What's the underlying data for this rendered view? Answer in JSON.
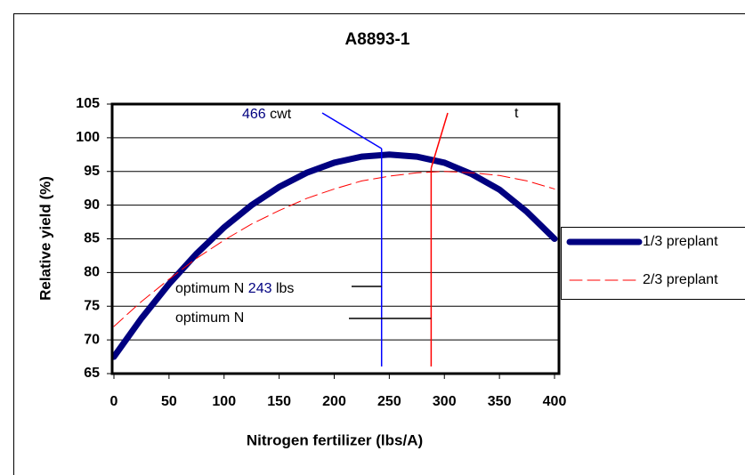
{
  "chart_data": {
    "type": "line",
    "title": "A8893-1",
    "xlabel": "Nitrogen fertilizer (lbs/A)",
    "ylabel": "Relative yield (%)",
    "x": [
      0,
      25,
      50,
      75,
      100,
      125,
      150,
      175,
      200,
      225,
      250,
      275,
      300,
      325,
      350,
      375,
      400
    ],
    "series": [
      {
        "name": "1/3 preplant",
        "color": "#000080",
        "dash": false,
        "values": [
          67.5,
          73.2,
          78.3,
          82.8,
          86.7,
          90,
          92.7,
          94.8,
          96.3,
          97.2,
          97.5,
          97.2,
          96.3,
          94.6,
          92.3,
          89,
          85
        ]
      },
      {
        "name": "2/3 preplant",
        "color": "#ff0000",
        "dash": true,
        "values": [
          72,
          75.7,
          79,
          82.1,
          84.8,
          87.2,
          89.2,
          91,
          92.4,
          93.6,
          94.3,
          94.8,
          95,
          94.8,
          94.4,
          93.6,
          92.4
        ]
      }
    ],
    "xlim": [
      0,
      400
    ],
    "xticks": [
      0,
      50,
      100,
      150,
      200,
      250,
      300,
      350,
      400
    ],
    "ylim": [
      65,
      105
    ],
    "yticks": [
      65,
      70,
      75,
      80,
      85,
      90,
      95,
      100,
      105
    ],
    "grid": true,
    "legend": "right",
    "vlines": [
      {
        "x": 243,
        "color": "#0000ff"
      },
      {
        "x": 288,
        "color": "#ff0000"
      }
    ],
    "annotations": [
      {
        "parts": [
          "466",
          " cwt"
        ]
      },
      {
        "parts": [
          "optimum N ",
          "243",
          " lbs"
        ]
      },
      {
        "parts": [
          "optimum N"
        ]
      },
      {
        "parts": [
          "t"
        ]
      }
    ]
  }
}
